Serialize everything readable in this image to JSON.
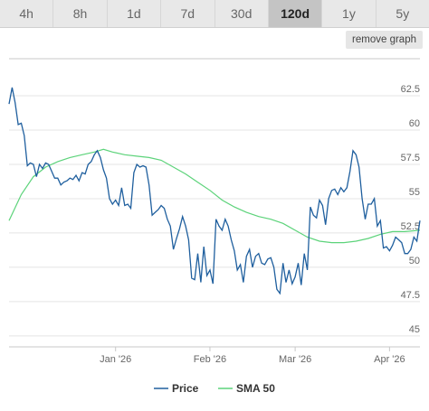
{
  "tabs": [
    {
      "label": "4h",
      "active": false
    },
    {
      "label": "8h",
      "active": false
    },
    {
      "label": "1d",
      "active": false
    },
    {
      "label": "7d",
      "active": false
    },
    {
      "label": "30d",
      "active": false
    },
    {
      "label": "120d",
      "active": true
    },
    {
      "label": "1y",
      "active": false
    },
    {
      "label": "5y",
      "active": false
    }
  ],
  "remove_graph_label": "remove graph",
  "colors": {
    "price": "#1f5f9e",
    "sma": "#5cd37a",
    "grid": "#e4e4e4"
  },
  "chart_data": {
    "type": "line",
    "title": "",
    "xlabel": "",
    "ylabel": "",
    "ylim": [
      44.2,
      65.2
    ],
    "xlim": [
      "2025-11-27",
      "2026-04-11"
    ],
    "y_ticks": [
      45,
      47.5,
      50,
      52.5,
      55,
      57.5,
      60,
      62.5
    ],
    "y_tick_labels": [
      "45",
      "47.5",
      "50",
      "52.5",
      "55",
      "57.5",
      "60",
      "62.5"
    ],
    "x_ticks": [
      "2026-01-01",
      "2026-02-01",
      "2026-03-01",
      "2026-04-01"
    ],
    "x_tick_labels": [
      "Jan '26",
      "Feb '26",
      "Mar '26",
      "Apr '26"
    ],
    "grid": true,
    "legend": "bottom",
    "series": [
      {
        "name": "Price",
        "x": [
          "2025-11-27",
          "2025-11-28",
          "2025-11-29",
          "2025-11-30",
          "2025-12-01",
          "2025-12-02",
          "2025-12-03",
          "2025-12-04",
          "2025-12-05",
          "2025-12-06",
          "2025-12-07",
          "2025-12-08",
          "2025-12-09",
          "2025-12-10",
          "2025-12-11",
          "2025-12-12",
          "2025-12-13",
          "2025-12-14",
          "2025-12-15",
          "2025-12-16",
          "2025-12-17",
          "2025-12-18",
          "2025-12-19",
          "2025-12-20",
          "2025-12-21",
          "2025-12-22",
          "2025-12-23",
          "2025-12-24",
          "2025-12-25",
          "2025-12-26",
          "2025-12-27",
          "2025-12-28",
          "2025-12-29",
          "2025-12-30",
          "2025-12-31",
          "2026-01-01",
          "2026-01-02",
          "2026-01-03",
          "2026-01-04",
          "2026-01-05",
          "2026-01-06",
          "2026-01-07",
          "2026-01-08",
          "2026-01-09",
          "2026-01-10",
          "2026-01-11",
          "2026-01-12",
          "2026-01-13",
          "2026-01-14",
          "2026-01-15",
          "2026-01-16",
          "2026-01-17",
          "2026-01-18",
          "2026-01-19",
          "2026-01-20",
          "2026-01-21",
          "2026-01-22",
          "2026-01-23",
          "2026-01-24",
          "2026-01-25",
          "2026-01-26",
          "2026-01-27",
          "2026-01-28",
          "2026-01-29",
          "2026-01-30",
          "2026-01-31",
          "2026-02-01",
          "2026-02-02",
          "2026-02-03",
          "2026-02-04",
          "2026-02-05",
          "2026-02-06",
          "2026-02-07",
          "2026-02-08",
          "2026-02-09",
          "2026-02-10",
          "2026-02-11",
          "2026-02-12",
          "2026-02-13",
          "2026-02-14",
          "2026-02-15",
          "2026-02-16",
          "2026-02-17",
          "2026-02-18",
          "2026-02-19",
          "2026-02-20",
          "2026-02-21",
          "2026-02-22",
          "2026-02-23",
          "2026-02-24",
          "2026-02-25",
          "2026-02-26",
          "2026-02-27",
          "2026-02-28",
          "2026-03-01",
          "2026-03-02",
          "2026-03-03",
          "2026-03-04",
          "2026-03-05",
          "2026-03-06",
          "2026-03-07",
          "2026-03-08",
          "2026-03-09",
          "2026-03-10",
          "2026-03-11",
          "2026-03-12",
          "2026-03-13",
          "2026-03-14",
          "2026-03-15",
          "2026-03-16",
          "2026-03-17",
          "2026-03-18",
          "2026-03-19",
          "2026-03-20",
          "2026-03-21",
          "2026-03-22",
          "2026-03-23",
          "2026-03-24",
          "2026-03-25",
          "2026-03-26",
          "2026-03-27",
          "2026-03-28",
          "2026-03-29",
          "2026-03-30",
          "2026-03-31",
          "2026-04-01",
          "2026-04-02",
          "2026-04-03",
          "2026-04-04",
          "2026-04-05",
          "2026-04-06",
          "2026-04-07",
          "2026-04-08",
          "2026-04-09",
          "2026-04-10",
          "2026-04-11"
        ],
        "values": [
          61.9,
          63.1,
          62.0,
          60.4,
          60.5,
          59.6,
          57.4,
          57.6,
          57.5,
          56.6,
          57.5,
          57.2,
          57.6,
          57.5,
          57.0,
          56.5,
          56.5,
          56.0,
          56.2,
          56.3,
          56.5,
          56.4,
          56.7,
          56.3,
          56.9,
          56.8,
          57.5,
          57.7,
          58.2,
          58.5,
          58.0,
          57.1,
          56.5,
          55.0,
          54.6,
          54.9,
          54.5,
          55.8,
          54.5,
          54.6,
          54.3,
          56.9,
          57.5,
          57.3,
          57.4,
          57.3,
          56.0,
          53.8,
          54.0,
          54.2,
          54.5,
          54.3,
          53.5,
          53.0,
          51.3,
          52.1,
          52.8,
          53.7,
          53.0,
          52.0,
          49.2,
          49.1,
          51.0,
          48.9,
          51.5,
          49.4,
          49.8,
          48.8,
          53.5,
          53.0,
          52.7,
          53.5,
          53.0,
          52.0,
          51.2,
          49.8,
          50.2,
          48.9,
          50.8,
          51.3,
          50.0,
          50.8,
          51.0,
          50.3,
          50.2,
          50.6,
          50.7,
          50.0,
          48.4,
          48.1,
          50.3,
          48.9,
          49.8,
          48.8,
          49.3,
          50.3,
          48.7,
          51.0,
          49.8,
          54.4,
          53.8,
          53.6,
          54.9,
          54.5,
          53.1,
          55.0,
          55.6,
          55.7,
          55.3,
          55.8,
          55.5,
          55.8,
          57.0,
          58.5,
          58.2,
          57.3,
          55.0,
          53.5,
          54.6,
          54.6,
          55.0,
          53.0,
          53.4,
          51.4,
          51.5,
          51.2,
          51.6,
          52.2,
          52.0,
          51.8,
          51.0,
          51.0,
          51.3,
          52.2,
          51.9,
          53.4
        ]
      },
      {
        "name": "SMA 50",
        "x": [
          "2025-11-27",
          "2025-12-01",
          "2025-12-05",
          "2025-12-09",
          "2025-12-13",
          "2025-12-17",
          "2025-12-21",
          "2025-12-25",
          "2025-12-28",
          "2025-12-31",
          "2026-01-04",
          "2026-01-08",
          "2026-01-12",
          "2026-01-16",
          "2026-01-20",
          "2026-01-24",
          "2026-01-28",
          "2026-02-01",
          "2026-02-05",
          "2026-02-09",
          "2026-02-13",
          "2026-02-17",
          "2026-02-21",
          "2026-02-25",
          "2026-03-01",
          "2026-03-05",
          "2026-03-09",
          "2026-03-13",
          "2026-03-17",
          "2026-03-21",
          "2026-03-25",
          "2026-03-29",
          "2026-04-02",
          "2026-04-06",
          "2026-04-11"
        ],
        "values": [
          53.4,
          55.3,
          56.6,
          57.3,
          57.7,
          58.0,
          58.2,
          58.4,
          58.6,
          58.4,
          58.2,
          58.1,
          58.0,
          57.8,
          57.3,
          56.8,
          56.2,
          55.6,
          54.9,
          54.4,
          54.0,
          53.7,
          53.5,
          53.2,
          52.7,
          52.2,
          51.9,
          51.8,
          51.8,
          51.9,
          52.1,
          52.4,
          52.6,
          52.6,
          52.7
        ]
      }
    ]
  }
}
